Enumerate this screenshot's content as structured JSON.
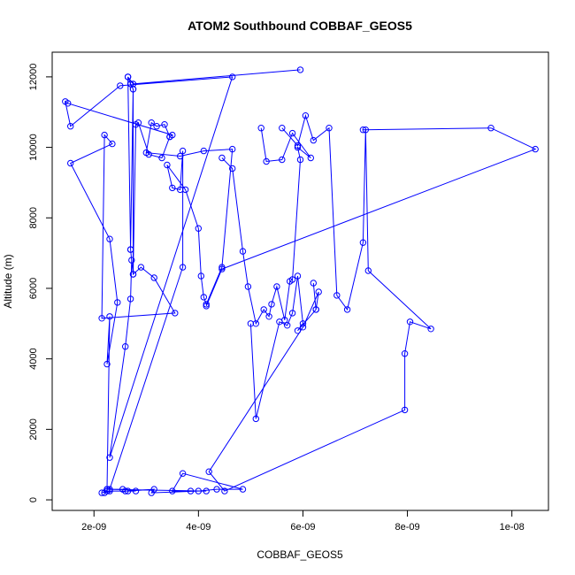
{
  "chart_data": {
    "type": "line",
    "title": "ATOM2 Southbound COBBAF_GEOS5",
    "xlabel": "COBBAF_GEOS5",
    "ylabel": "Altitude (m)",
    "xlim": [
      1.2e-09,
      1.07e-08
    ],
    "ylim": [
      -300,
      12700
    ],
    "x_ticks": [
      {
        "value": 2e-09,
        "label": "2e-09"
      },
      {
        "value": 4e-09,
        "label": "4e-09"
      },
      {
        "value": 6e-09,
        "label": "6e-09"
      },
      {
        "value": 8e-09,
        "label": "8e-09"
      },
      {
        "value": 1e-08,
        "label": "1e-08"
      }
    ],
    "y_ticks": [
      {
        "value": 0,
        "label": "0"
      },
      {
        "value": 2000,
        "label": "2000"
      },
      {
        "value": 4000,
        "label": "4000"
      },
      {
        "value": 6000,
        "label": "6000"
      },
      {
        "value": 8000,
        "label": "8000"
      },
      {
        "value": 10000,
        "label": "10000"
      },
      {
        "value": 12000,
        "label": "12000"
      }
    ],
    "grid": false,
    "legend": "none",
    "series_color": "#0000ff",
    "series": [
      {
        "x": [
          5.95e-09,
          2.75e-09,
          2.65e-09,
          2.7e-09,
          2.75e-09,
          2.7e-09,
          2.65e-09,
          2.7e-09,
          2.75e-09,
          2.75e-09,
          2.7e-09,
          2.72e-09,
          2.7e-09,
          2.6e-09,
          2.3e-09,
          4.65e-09,
          2.5e-09,
          1.55e-09,
          1.45e-09,
          1.5e-09,
          3.5e-09,
          3.45e-09,
          3.3e-09,
          3.05e-09,
          2.85e-09,
          2.8e-09,
          2.75e-09,
          2.9e-09,
          3.15e-09,
          3.55e-09,
          2.15e-09,
          2.2e-09,
          2.35e-09,
          1.55e-09,
          2.3e-09,
          2.45e-09,
          2.25e-09,
          2.3e-09,
          2.25e-09
        ],
        "y": [
          12200,
          11800,
          12000,
          11800,
          11650,
          7100,
          12000,
          11800,
          11650,
          6400,
          7100,
          6800,
          5700,
          4350,
          1200,
          12000,
          11750,
          10600,
          11300,
          11250,
          10350,
          10300,
          9700,
          9800,
          10700,
          10650,
          6400,
          6600,
          6300,
          5300,
          5150,
          10350,
          10100,
          9550,
          7400,
          5600,
          3850,
          5200,
          300
        ]
      },
      {
        "x": [
          2.2e-09,
          2.3e-09,
          2.6e-09,
          2.65e-09,
          3.15e-09,
          3.1e-09,
          4e-09,
          4.35e-09,
          4.85e-09,
          3.7e-09,
          3.5e-09,
          3.85e-09,
          4.15e-09,
          2.25e-09,
          2.55e-09,
          2.8e-09,
          2.25e-09,
          2.15e-09
        ],
        "y": [
          200,
          250,
          250,
          250,
          300,
          200,
          250,
          300,
          300,
          750,
          250,
          250,
          250,
          300,
          300,
          250,
          250,
          200
        ]
      },
      {
        "x": [
          2.3e-09,
          3.7e-09,
          3.7e-09,
          3.65e-09,
          3.5e-09,
          3.4e-09,
          3.75e-09,
          4e-09,
          4.05e-09,
          4.1e-09,
          4.15e-09,
          4.45e-09,
          4.65e-09,
          4.1e-09,
          3.65e-09,
          3e-09,
          3.1e-09,
          3.2e-09,
          3.35e-09,
          3.45e-09
        ],
        "y": [
          300,
          6600,
          9900,
          8800,
          8850,
          9500,
          8800,
          7700,
          6350,
          5750,
          5550,
          6600,
          9950,
          9900,
          9750,
          9850,
          10700,
          10600,
          10650,
          10300
        ]
      },
      {
        "x": [
          5.2e-09,
          5.3e-09,
          5.6e-09,
          5.8e-09,
          6.15e-09,
          5.9e-09,
          5.95e-09,
          5.8e-09,
          5.75e-09,
          5.65e-09,
          5.5e-09,
          5.4e-09,
          5.35e-09,
          5.25e-09,
          5.1e-09,
          4.95e-09,
          4.85e-09,
          4.65e-09,
          4.45e-09
        ],
        "y": [
          10550,
          9600,
          9650,
          10400,
          9700,
          10000,
          9650,
          6250,
          6200,
          5100,
          6050,
          5550,
          5200,
          5400,
          5000,
          6050,
          7050,
          9400,
          9700
        ]
      },
      {
        "x": [
          5.6e-09,
          5.9e-09,
          6.05e-09,
          6.2e-09,
          6.5e-09,
          6.65e-09,
          6.85e-09,
          7.15e-09,
          7.2e-09,
          7.25e-09,
          8.45e-09,
          8.05e-09,
          7.95e-09,
          7.95e-09,
          4.5e-09,
          4.2e-09,
          6e-09,
          6.3e-09,
          6.25e-09,
          6.2e-09
        ],
        "y": [
          10550,
          10050,
          10900,
          10200,
          10550,
          5800,
          5400,
          7300,
          10500,
          6500,
          4850,
          5050,
          4150,
          2550,
          250,
          800,
          4900,
          5900,
          5400,
          6150
        ]
      },
      {
        "x": [
          7.15e-09,
          9.6e-09,
          1.045e-08,
          4.45e-09,
          4.15e-09
        ],
        "y": [
          10500,
          10550,
          9950,
          6550,
          5500
        ]
      },
      {
        "x": [
          6.25e-09,
          5.9e-09,
          6e-09,
          5.9e-09,
          5.8e-09,
          5.7e-09,
          5.55e-09,
          5.1e-09,
          5e-09
        ],
        "y": [
          5400,
          4800,
          5000,
          6350,
          5300,
          4950,
          5050,
          2300,
          5000
        ]
      }
    ]
  }
}
